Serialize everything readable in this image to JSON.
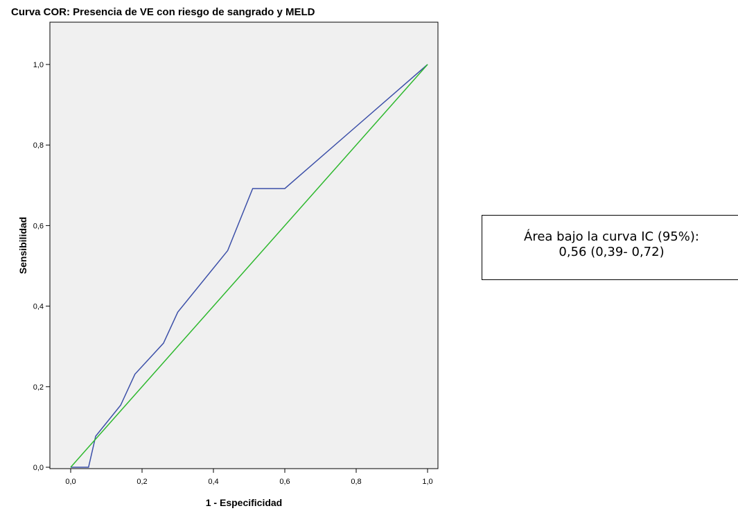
{
  "chart_data": {
    "type": "line",
    "title": "Curva COR: Presencia de VE con riesgo de sangrado y MELD",
    "xlabel": "1 - Especificidad",
    "ylabel": "Sensibilidad",
    "xlim": [
      0,
      1
    ],
    "ylim": [
      0,
      1
    ],
    "x_ticks": [
      "0,0",
      "0,2",
      "0,4",
      "0,6",
      "0,8",
      "1,0"
    ],
    "y_ticks": [
      "0,0",
      "0,2",
      "0,4",
      "0,6",
      "0,8",
      "1,0"
    ],
    "x_tick_values": [
      0,
      0.2,
      0.4,
      0.6,
      0.8,
      1.0
    ],
    "y_tick_values": [
      0,
      0.2,
      0.4,
      0.6,
      0.8,
      1.0
    ],
    "grid": false,
    "series": [
      {
        "color": "#3b4fa8",
        "points": [
          [
            0.0,
            0.0
          ],
          [
            0.05,
            0.0
          ],
          [
            0.07,
            0.077
          ],
          [
            0.14,
            0.154
          ],
          [
            0.18,
            0.231
          ],
          [
            0.26,
            0.308
          ],
          [
            0.3,
            0.385
          ],
          [
            0.44,
            0.538
          ],
          [
            0.51,
            0.692
          ],
          [
            0.6,
            0.692
          ],
          [
            1.0,
            1.0
          ]
        ]
      },
      {
        "color": "#2db82d",
        "points": [
          [
            0.0,
            0.0
          ],
          [
            1.0,
            1.0
          ]
        ]
      }
    ],
    "plot_background": "#f0f0f0",
    "annotation": {
      "line1": "Área bajo la curva IC (95%):",
      "line2": "0,56 (0,39- 0,72)"
    }
  }
}
